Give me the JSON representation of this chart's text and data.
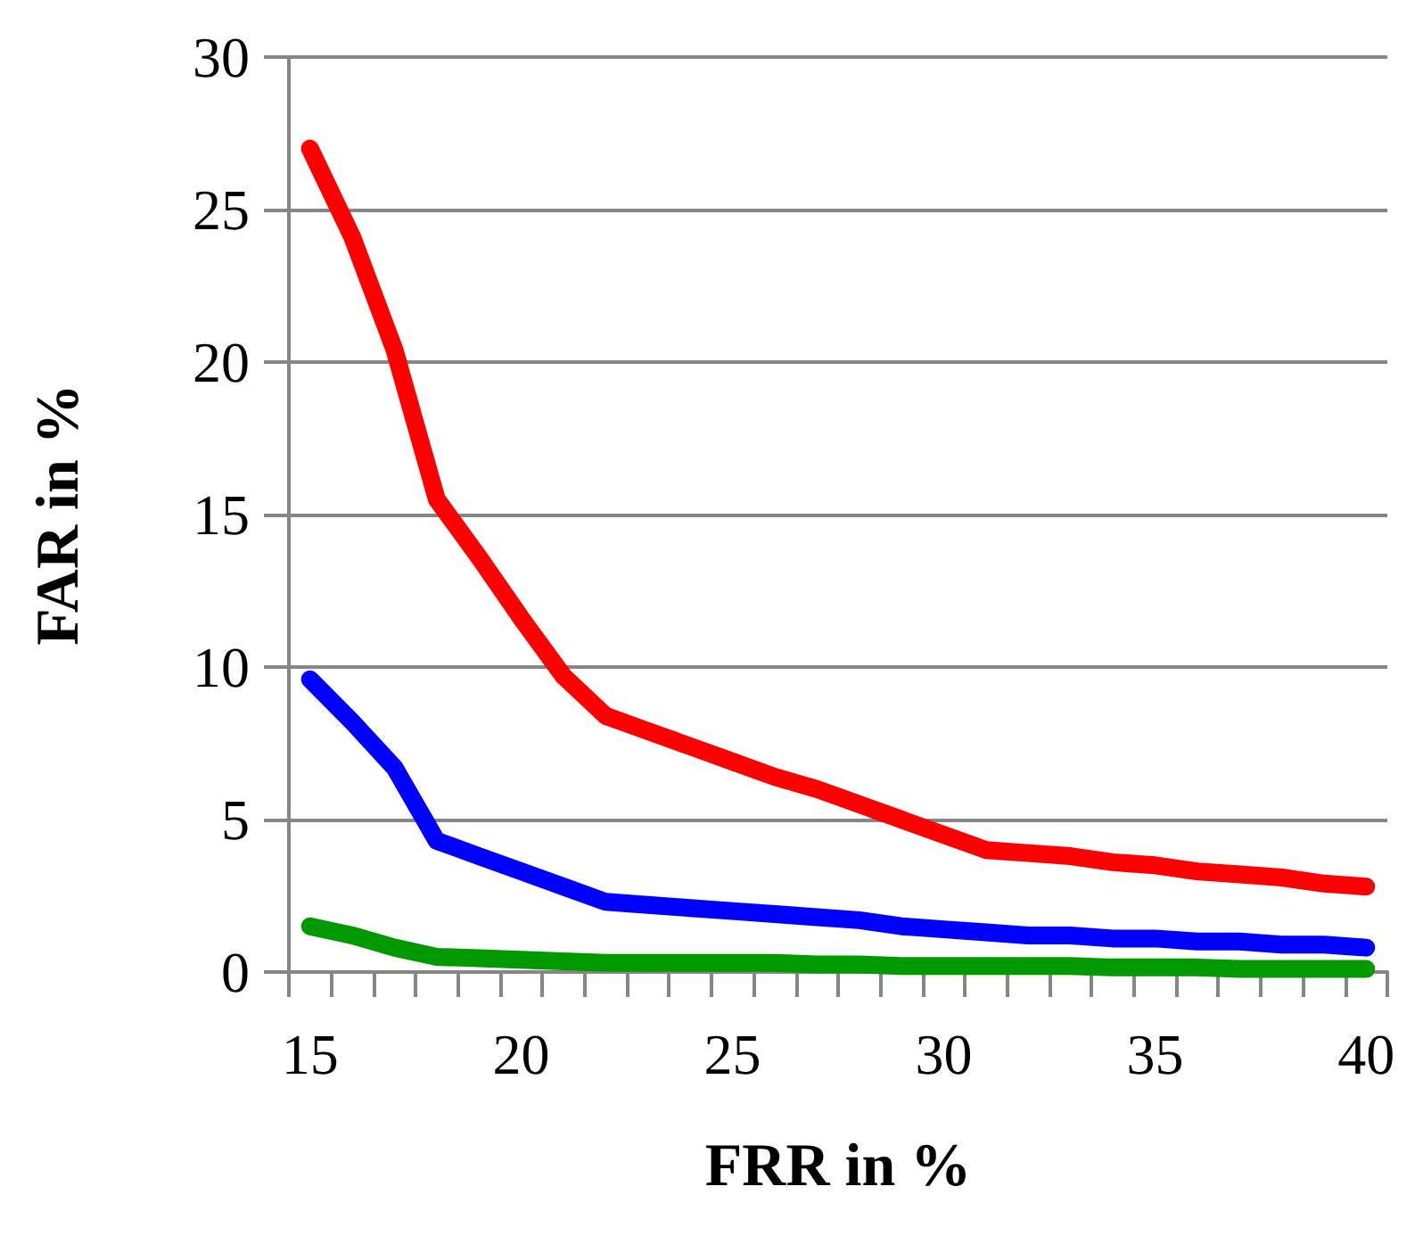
{
  "chart_data": {
    "type": "line",
    "xlabel": "FRR in %",
    "ylabel": "FAR in %",
    "categories": [
      "15",
      null,
      null,
      null,
      null,
      "20",
      null,
      null,
      null,
      null,
      "25",
      null,
      null,
      null,
      null,
      "30",
      null,
      null,
      null,
      null,
      "35",
      null,
      null,
      null,
      null,
      "40"
    ],
    "series": [
      {
        "color": "#ff0000",
        "values": [
          27,
          24.1,
          20.4,
          15.5,
          13.6,
          11.6,
          9.7,
          8.4,
          7.9,
          7.4,
          6.9,
          6.4,
          6.0,
          5.5,
          5.0,
          4.5,
          4.0,
          3.9,
          3.8,
          3.6,
          3.5,
          3.3,
          3.2,
          3.1,
          2.9,
          2.8
        ]
      },
      {
        "color": "#0000ff",
        "values": [
          9.6,
          8.2,
          6.7,
          4.3,
          3.8,
          3.3,
          2.8,
          2.3,
          2.2,
          2.1,
          2.0,
          1.9,
          1.8,
          1.7,
          1.5,
          1.4,
          1.3,
          1.2,
          1.2,
          1.1,
          1.1,
          1.0,
          1.0,
          0.9,
          0.9,
          0.8
        ]
      },
      {
        "color": "#009900",
        "values": [
          1.5,
          1.2,
          0.8,
          0.5,
          0.45,
          0.4,
          0.35,
          0.3,
          0.3,
          0.3,
          0.3,
          0.3,
          0.25,
          0.25,
          0.2,
          0.2,
          0.2,
          0.2,
          0.2,
          0.15,
          0.15,
          0.15,
          0.1,
          0.1,
          0.1,
          0.1
        ]
      }
    ],
    "ylim": [
      0,
      30
    ],
    "yticks": [
      0,
      5,
      10,
      15,
      20,
      25,
      30
    ],
    "grid": "y",
    "line_style": "solid"
  }
}
